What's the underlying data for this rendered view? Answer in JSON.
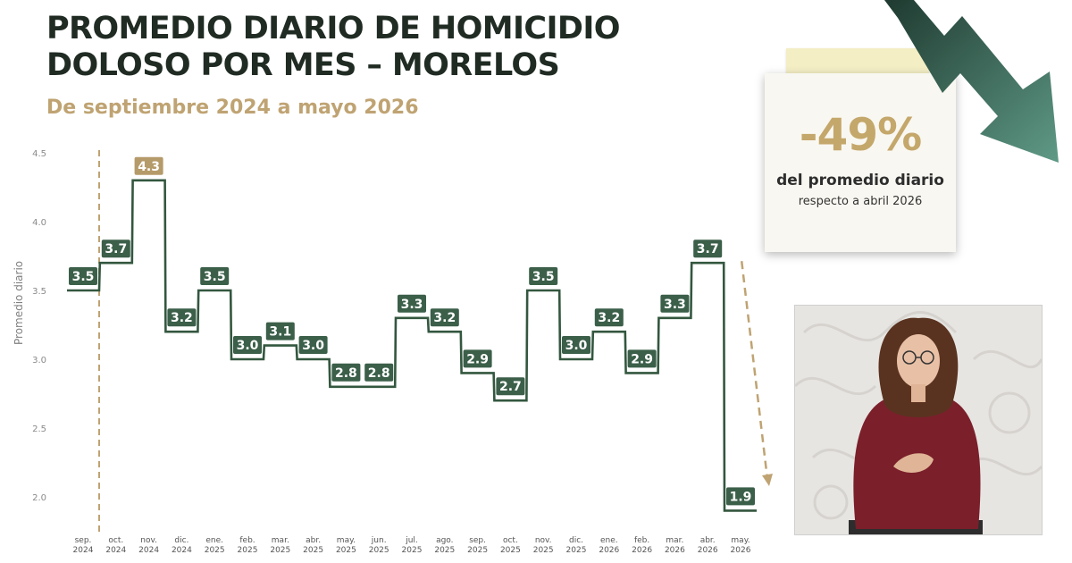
{
  "title": {
    "line1": "PROMEDIO DIARIO DE HOMICIDIO",
    "line2": "DOLOSO POR MES – MORELOS"
  },
  "subtitle": "De septiembre 2024 a mayo 2026",
  "note": {
    "percent": "-49%",
    "line1": "del promedio diario",
    "line2": "respecto a abril 2026"
  },
  "colors": {
    "title": "#1f2b23",
    "accent_gold": "#bfa372",
    "line": "#33573f",
    "label_bg": "#3b5f49",
    "highlight_bg": "#b59a6a",
    "arrow": "#4f8b76"
  },
  "icons": [
    "down-trend-arrow-icon"
  ],
  "chart_data": {
    "type": "line",
    "style": "step",
    "ylabel": "Promedio diario",
    "ylim": [
      1.9,
      4.5
    ],
    "yticks": [
      "2.0",
      "2.5",
      "3.0",
      "3.5",
      "4.0",
      "4.5"
    ],
    "categories": [
      [
        "sep.",
        "2024"
      ],
      [
        "oct.",
        "2024"
      ],
      [
        "nov.",
        "2024"
      ],
      [
        "dic.",
        "2024"
      ],
      [
        "ene.",
        "2025"
      ],
      [
        "feb.",
        "2025"
      ],
      [
        "mar.",
        "2025"
      ],
      [
        "abr.",
        "2025"
      ],
      [
        "may.",
        "2025"
      ],
      [
        "jun.",
        "2025"
      ],
      [
        "jul.",
        "2025"
      ],
      [
        "ago.",
        "2025"
      ],
      [
        "sep.",
        "2025"
      ],
      [
        "oct.",
        "2025"
      ],
      [
        "nov.",
        "2025"
      ],
      [
        "dic.",
        "2025"
      ],
      [
        "ene.",
        "2026"
      ],
      [
        "feb.",
        "2026"
      ],
      [
        "mar.",
        "2026"
      ],
      [
        "abr.",
        "2026"
      ],
      [
        "may.",
        "2026"
      ]
    ],
    "values": [
      3.5,
      3.7,
      4.3,
      3.2,
      3.5,
      3.0,
      3.1,
      3.0,
      2.8,
      2.8,
      3.3,
      3.2,
      2.9,
      2.7,
      3.5,
      3.0,
      3.2,
      2.9,
      3.3,
      3.7,
      1.9
    ],
    "labels": [
      "3.5",
      "3.7",
      "4.3",
      "3.2",
      "3.5",
      "3.0",
      "3.1",
      "3.0",
      "2.8",
      "2.8",
      "3.3",
      "3.2",
      "2.9",
      "2.7",
      "3.5",
      "3.0",
      "3.2",
      "2.9",
      "3.3",
      "3.7",
      "1.9"
    ],
    "highlight_index": 2,
    "reference_line_index": 0,
    "trend_arrow": {
      "from_index": 19,
      "to_index": 20
    }
  }
}
